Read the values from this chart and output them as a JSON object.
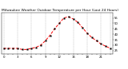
{
  "title": "Milwaukee Weather Outdoor Temperature per Hour (Last 24 Hours)",
  "hours": [
    0,
    1,
    2,
    3,
    4,
    5,
    6,
    7,
    8,
    9,
    10,
    11,
    12,
    13,
    14,
    15,
    16,
    17,
    18,
    19,
    20,
    21,
    22,
    23
  ],
  "temps": [
    27,
    27,
    27,
    27,
    26,
    26,
    27,
    28,
    30,
    34,
    39,
    45,
    50,
    55,
    56,
    54,
    51,
    46,
    41,
    37,
    34,
    31,
    29,
    27
  ],
  "line_color": "#ff0000",
  "marker_color": "#000000",
  "bg_color": "#ffffff",
  "grid_color": "#888888",
  "title_fontsize": 3.2,
  "tick_fontsize": 2.8,
  "ylim": [
    22,
    60
  ],
  "yticks": [
    25,
    30,
    35,
    40,
    45,
    50,
    55
  ],
  "ytick_labels": [
    "25",
    "30",
    "35",
    "40",
    "45",
    "50",
    "55"
  ],
  "grid_hours": [
    0,
    3,
    6,
    9,
    12,
    15,
    18,
    21,
    23
  ]
}
